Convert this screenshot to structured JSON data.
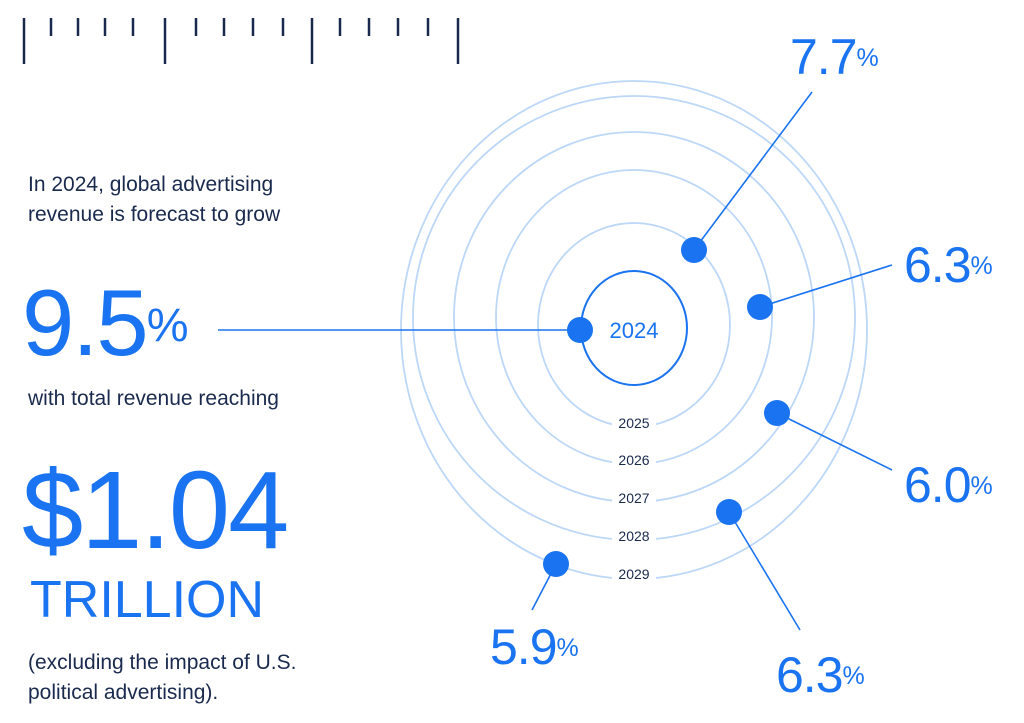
{
  "headline": {
    "intro": "In 2024, global advertising revenue is forecast to grow",
    "growth_value": "9.5",
    "growth_unit": "%",
    "middle": "with total revenue reaching",
    "revenue_value": "$1.04",
    "revenue_unit": "TRILLION",
    "footnote": "(excluding the impact of U.S. political advertising)."
  },
  "chart_data": {
    "type": "radial",
    "center_label": "2024",
    "years": [
      "2025",
      "2026",
      "2027",
      "2028",
      "2029"
    ],
    "growth": [
      {
        "year": "2024",
        "value": 9.5,
        "label": "9.5%"
      },
      {
        "year": "2025",
        "value": 7.7,
        "label": "7.7%"
      },
      {
        "year": "2026",
        "value": 6.3,
        "label": "6.3%"
      },
      {
        "year": "2027",
        "value": 6.0,
        "label": "6.0%"
      },
      {
        "year": "2028",
        "value": 6.3,
        "label": "6.3%"
      },
      {
        "year": "2029",
        "value": 5.9,
        "label": "5.9%"
      }
    ],
    "colors": {
      "accent": "#1a73f0",
      "ring": "#bcd7f7",
      "text": "#1a2a4e"
    }
  }
}
